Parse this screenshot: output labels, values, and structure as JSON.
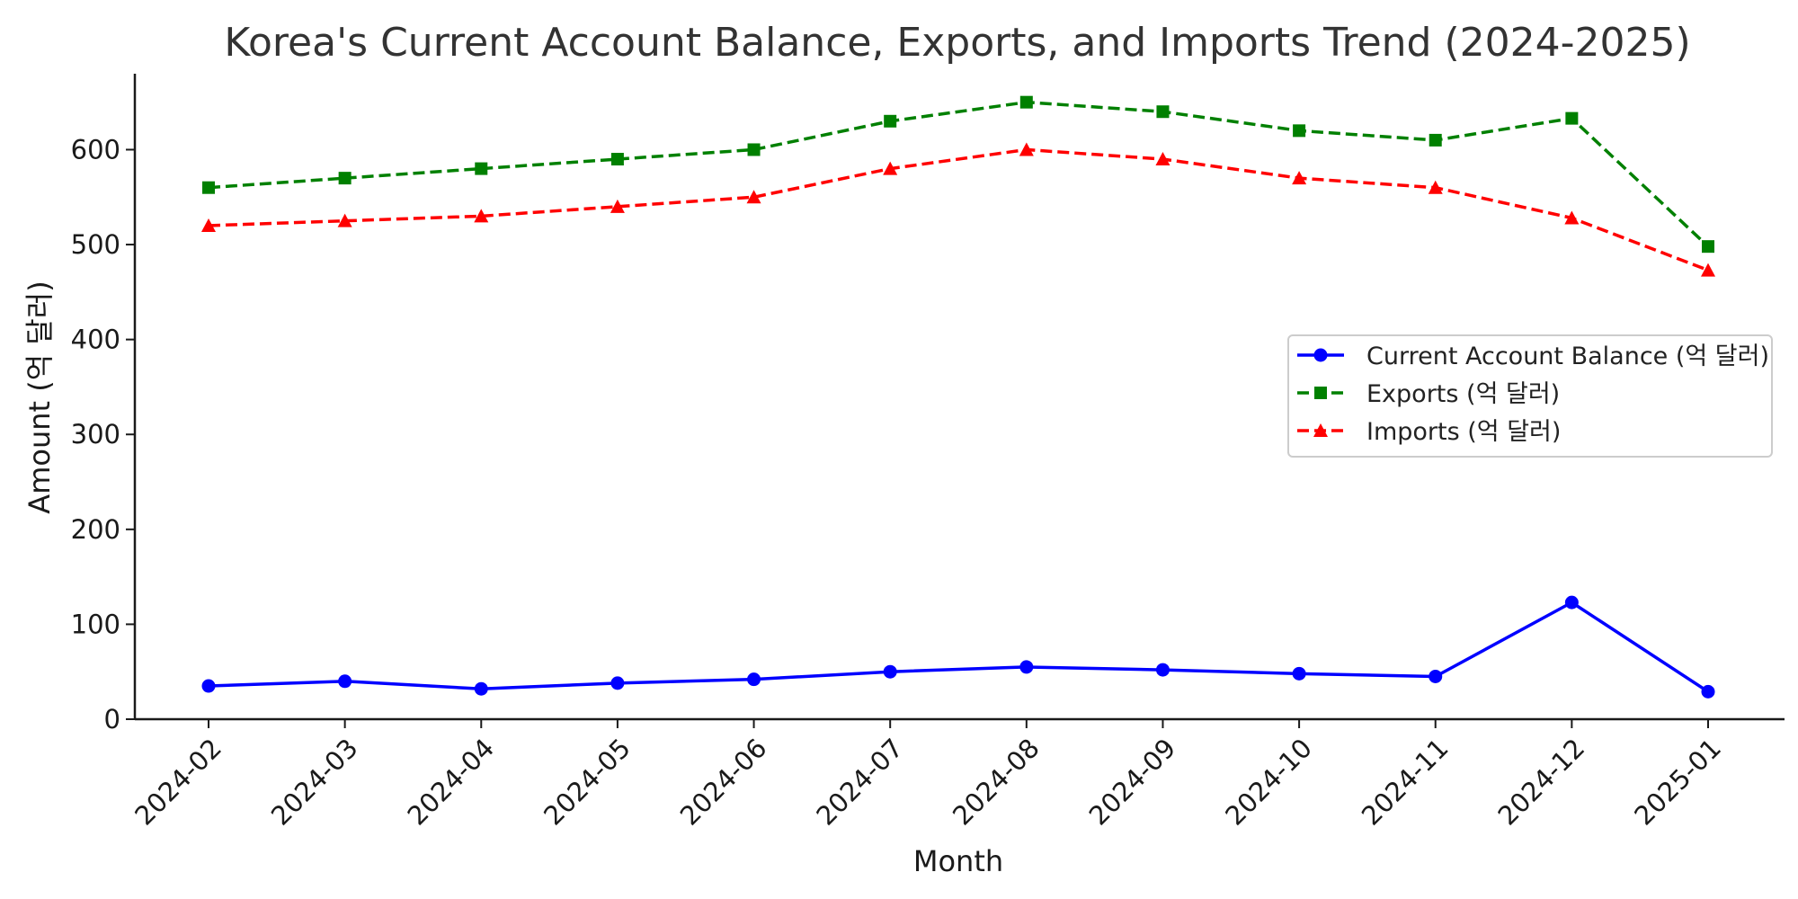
{
  "chart_data": {
    "type": "line",
    "title": "Korea's Current Account Balance, Exports, and Imports Trend (2024-2025)",
    "xlabel": "Month",
    "ylabel": "Amount (억 달러)",
    "categories": [
      "2024-02",
      "2024-03",
      "2024-04",
      "2024-05",
      "2024-06",
      "2024-07",
      "2024-08",
      "2024-09",
      "2024-10",
      "2024-11",
      "2024-12",
      "2025-01"
    ],
    "ylim": [
      0,
      680
    ],
    "yticks": [
      0,
      100,
      200,
      300,
      400,
      500,
      600
    ],
    "grid": false,
    "legend_position": "center-right",
    "series": [
      {
        "name": "Current Account Balance (억 달러)",
        "color": "#0000ff",
        "line_style": "solid",
        "marker": "circle",
        "values": [
          35,
          40,
          32,
          38,
          42,
          50,
          55,
          52,
          48,
          45,
          123,
          29
        ]
      },
      {
        "name": "Exports (억 달러)",
        "color": "#008000",
        "line_style": "dashed",
        "marker": "square",
        "values": [
          560,
          570,
          580,
          590,
          600,
          630,
          650,
          640,
          620,
          610,
          633,
          498
        ]
      },
      {
        "name": "Imports (억 달러)",
        "color": "#ff0000",
        "line_style": "dashed",
        "marker": "triangle",
        "values": [
          520,
          525,
          530,
          540,
          550,
          580,
          600,
          590,
          570,
          560,
          528,
          473
        ]
      }
    ]
  }
}
